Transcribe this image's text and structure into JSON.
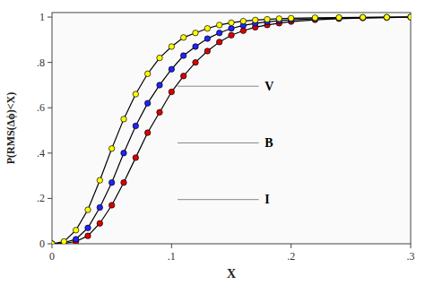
{
  "chart_data": {
    "type": "line",
    "xlabel": "X",
    "ylabel": "P(RMS(Δϕ)<X)",
    "xlim": [
      0,
      0.3
    ],
    "ylim": [
      0,
      1.02
    ],
    "xticks": [
      0,
      {
        "value": 0.1,
        "label": ".1"
      },
      {
        "value": 0.2,
        "label": ".2"
      },
      {
        "value": 0.3,
        "label": ".3"
      }
    ],
    "yticks": [
      0,
      {
        "value": 0.2,
        "label": ".2"
      },
      {
        "value": 0.4,
        "label": ".4"
      },
      {
        "value": 0.6,
        "label": ".6"
      },
      {
        "value": 0.8,
        "label": ".8"
      },
      1
    ],
    "grid": false,
    "marker": "circle",
    "x": [
      0.0,
      0.01,
      0.02,
      0.03,
      0.04,
      0.05,
      0.06,
      0.07,
      0.08,
      0.09,
      0.1,
      0.11,
      0.12,
      0.13,
      0.14,
      0.15,
      0.16,
      0.17,
      0.18,
      0.19,
      0.2,
      0.22,
      0.24,
      0.26,
      0.28,
      0.3
    ],
    "series": [
      {
        "color": "#DD0000",
        "values": [
          0.0,
          0.002,
          0.01,
          0.035,
          0.09,
          0.17,
          0.27,
          0.38,
          0.49,
          0.58,
          0.67,
          0.74,
          0.8,
          0.85,
          0.89,
          0.92,
          0.94,
          0.955,
          0.965,
          0.973,
          0.98,
          0.988,
          0.993,
          0.996,
          0.998,
          1.0
        ]
      },
      {
        "color": "#2222FF",
        "values": [
          0.0,
          0.005,
          0.02,
          0.07,
          0.16,
          0.27,
          0.4,
          0.52,
          0.62,
          0.7,
          0.77,
          0.83,
          0.87,
          0.905,
          0.93,
          0.95,
          0.963,
          0.972,
          0.979,
          0.984,
          0.988,
          0.993,
          0.996,
          0.998,
          0.999,
          1.0
        ]
      },
      {
        "color": "#FFFF00",
        "values": [
          0.0,
          0.01,
          0.06,
          0.15,
          0.28,
          0.42,
          0.55,
          0.66,
          0.75,
          0.82,
          0.87,
          0.91,
          0.93,
          0.95,
          0.965,
          0.975,
          0.982,
          0.987,
          0.99,
          0.993,
          0.995,
          0.997,
          0.998,
          0.999,
          0.9995,
          1.0
        ]
      }
    ],
    "annotations": [
      {
        "text": "V",
        "x": 0.178,
        "y": 0.695,
        "line_x": [
          0.105,
          0.173
        ],
        "line_y": [
          0.695,
          0.695
        ]
      },
      {
        "text": "B",
        "x": 0.178,
        "y": 0.445,
        "line_x": [
          0.105,
          0.173
        ],
        "line_y": [
          0.445,
          0.445
        ]
      },
      {
        "text": "I",
        "x": 0.178,
        "y": 0.195,
        "line_x": [
          0.105,
          0.173
        ],
        "line_y": [
          0.195,
          0.195
        ]
      }
    ]
  }
}
